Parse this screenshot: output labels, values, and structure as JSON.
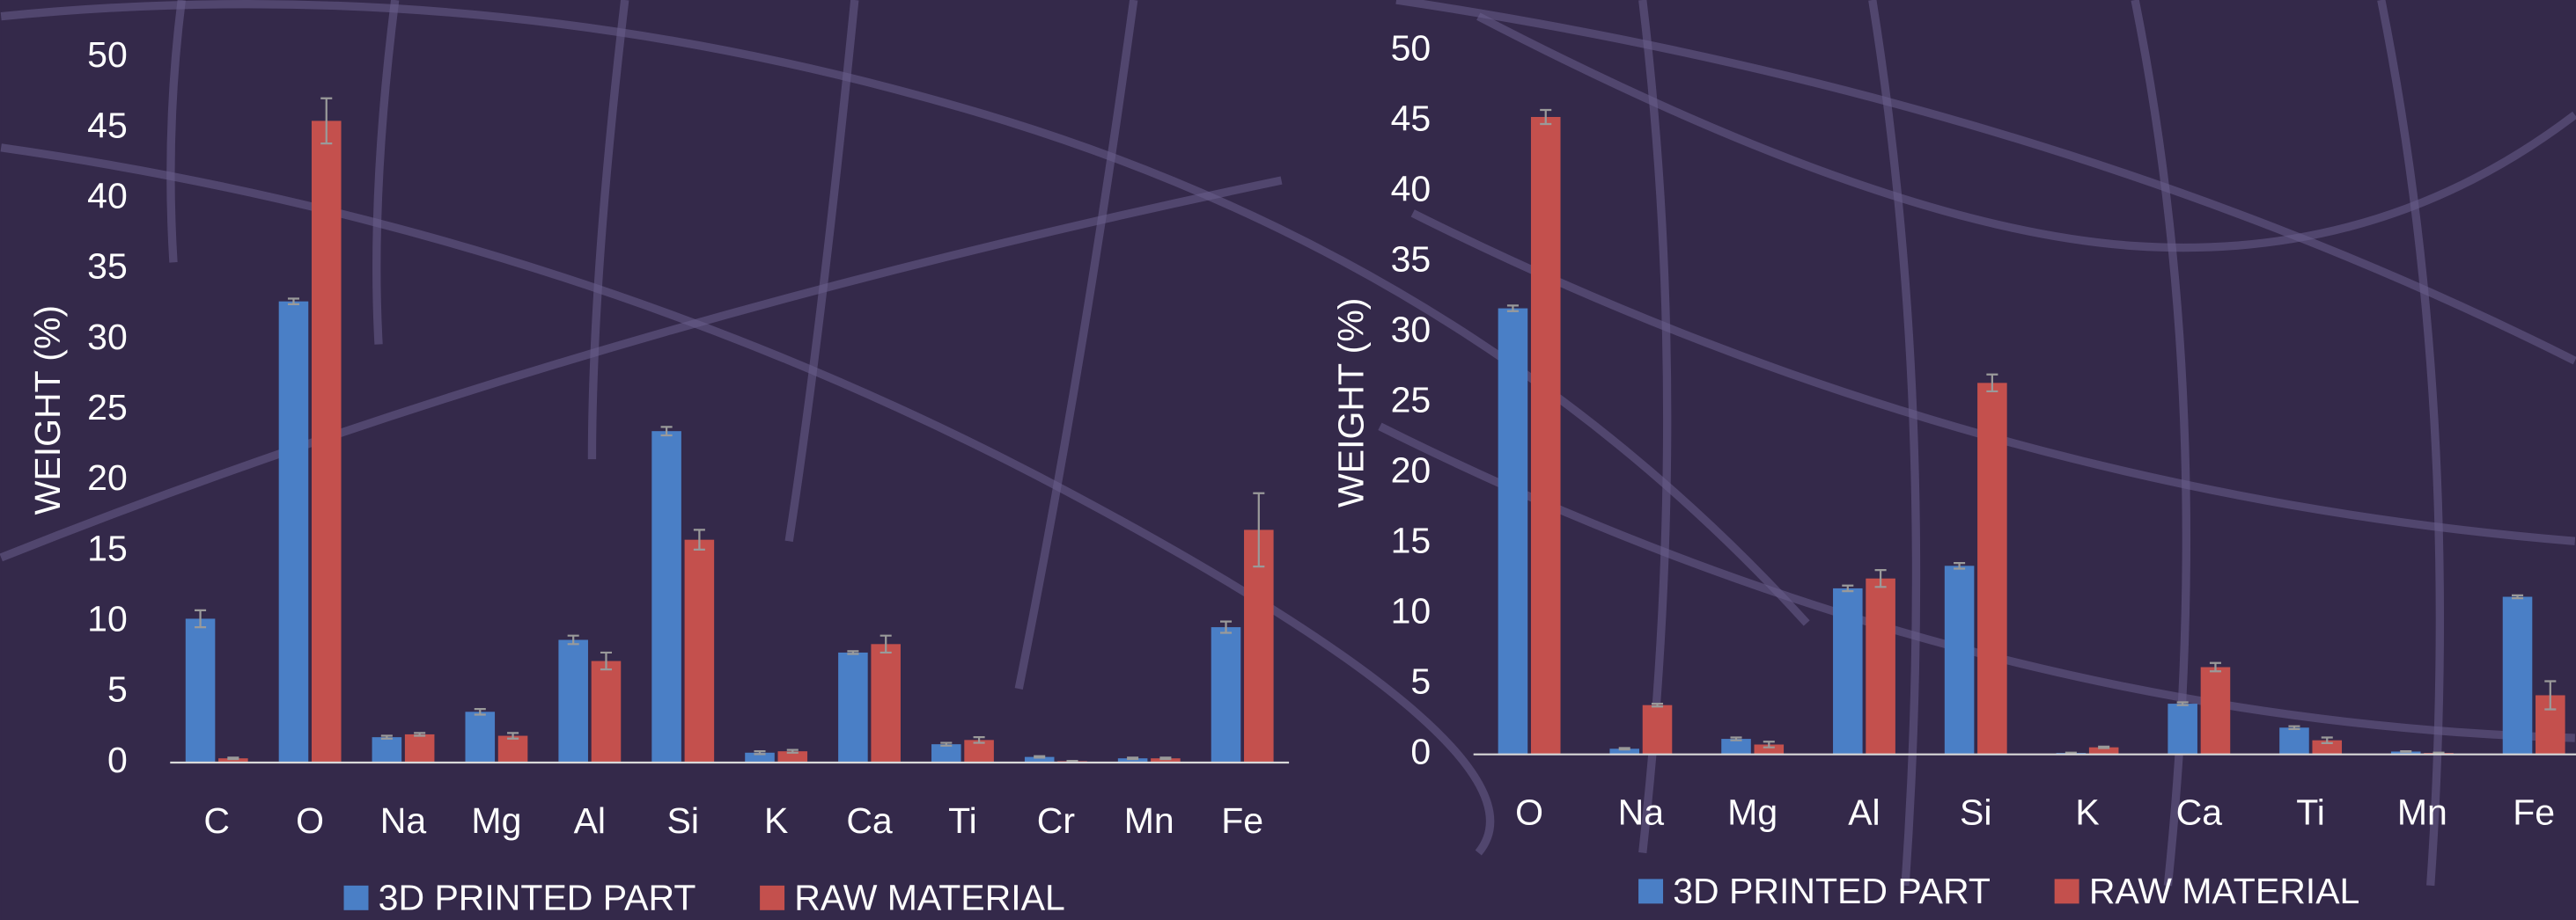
{
  "chart_data": [
    {
      "type": "bar",
      "ylabel": "WEIGHT (%)",
      "categories": [
        "C",
        "O",
        "Na",
        "Mg",
        "Al",
        "Si",
        "K",
        "Ca",
        "Ti",
        "Cr",
        "Mn",
        "Fe"
      ],
      "series": [
        {
          "name": "3D PRINTED PART",
          "color": "#4a7fc6",
          "values": [
            10.2,
            32.7,
            1.8,
            3.6,
            8.7,
            23.5,
            0.7,
            7.8,
            1.3,
            0.4,
            0.3,
            9.6
          ],
          "errors": [
            0.6,
            0.2,
            0.1,
            0.2,
            0.3,
            0.3,
            0.1,
            0.1,
            0.1,
            0.05,
            0.05,
            0.4
          ]
        },
        {
          "name": "RAW MATERIAL",
          "color": "#c4504d",
          "values": [
            0.3,
            45.5,
            2.0,
            1.9,
            7.2,
            15.8,
            0.8,
            8.4,
            1.6,
            0.1,
            0.3,
            16.5
          ],
          "errors": [
            0.05,
            1.6,
            0.1,
            0.2,
            0.6,
            0.7,
            0.1,
            0.6,
            0.2,
            0.02,
            0.05,
            2.6
          ]
        }
      ],
      "ylim": [
        0,
        50
      ],
      "yticks": [
        0,
        5,
        10,
        15,
        20,
        25,
        30,
        35,
        40,
        45,
        50
      ],
      "legend": "bottom"
    },
    {
      "type": "bar",
      "ylabel": "WEIGHT (%)",
      "categories": [
        "O",
        "Na",
        "Mg",
        "Al",
        "Si",
        "K",
        "Ca",
        "Ti",
        "Mn",
        "Fe"
      ],
      "series": [
        {
          "name": "3D PRINTED PART",
          "color": "#4a7fc6",
          "values": [
            31.7,
            0.4,
            1.1,
            11.8,
            13.4,
            0.1,
            3.6,
            1.9,
            0.2,
            11.2
          ],
          "errors": [
            0.2,
            0.05,
            0.1,
            0.2,
            0.2,
            0.02,
            0.1,
            0.1,
            0.02,
            0.1
          ]
        },
        {
          "name": "RAW MATERIAL",
          "color": "#c4504d",
          "values": [
            45.3,
            3.5,
            0.7,
            12.5,
            26.4,
            0.5,
            6.2,
            1.0,
            0.1,
            4.2
          ],
          "errors": [
            0.5,
            0.1,
            0.2,
            0.6,
            0.6,
            0.05,
            0.3,
            0.2,
            0.02,
            1.0
          ]
        }
      ],
      "ylim": [
        0,
        50
      ],
      "yticks": [
        0,
        5,
        10,
        15,
        20,
        25,
        30,
        35,
        40,
        45,
        50
      ],
      "legend": "bottom"
    }
  ]
}
